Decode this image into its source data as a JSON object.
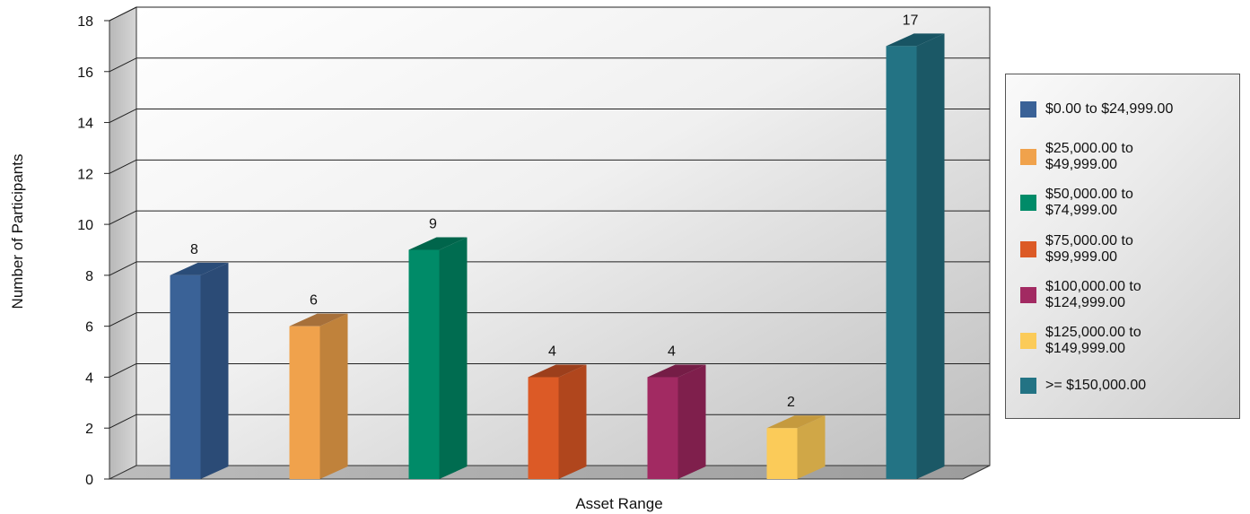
{
  "chart_data": {
    "type": "bar",
    "title": "",
    "xlabel": "Asset Range",
    "ylabel": "Number of Participants",
    "ylim": [
      0,
      18
    ],
    "yticks": [
      0,
      2,
      4,
      6,
      8,
      10,
      12,
      14,
      16,
      18
    ],
    "grid": true,
    "legend_position": "right",
    "categories": [
      "$0.00 to $24,999.00",
      "$25,000.00 to $49,999.00",
      "$50,000.00 to $74,999.00",
      "$75,000.00 to $99,999.00",
      "$100,000.00 to $124,999.00",
      "$125,000.00 to $149,999.00",
      ">= $150,000.00"
    ],
    "values": [
      8,
      6,
      9,
      4,
      4,
      2,
      17
    ],
    "colors": [
      "#3a6297",
      "#f0a24c",
      "#008b68",
      "#dc5a26",
      "#a22a62",
      "#fbcb59",
      "#237384"
    ],
    "side_colors": [
      "#2b4b76",
      "#c0823b",
      "#006c50",
      "#b0461d",
      "#7f1f4c",
      "#d0a747",
      "#1b5866"
    ],
    "top_colors": [
      "#2a4c78",
      "#a7703a",
      "#00654b",
      "#9c3f1c",
      "#751d46",
      "#c59a3e",
      "#185463"
    ],
    "legend": [
      {
        "line1": "$0.00 to $24,999.00",
        "line2": ""
      },
      {
        "line1": "$25,000.00 to",
        "line2": "$49,999.00"
      },
      {
        "line1": "$50,000.00 to",
        "line2": "$74,999.00"
      },
      {
        "line1": "$75,000.00 to",
        "line2": "$99,999.00"
      },
      {
        "line1": "$100,000.00 to",
        "line2": "$124,999.00"
      },
      {
        "line1": "$125,000.00 to",
        "line2": "$149,999.00"
      },
      {
        "line1": ">= $150,000.00",
        "line2": ""
      }
    ]
  }
}
